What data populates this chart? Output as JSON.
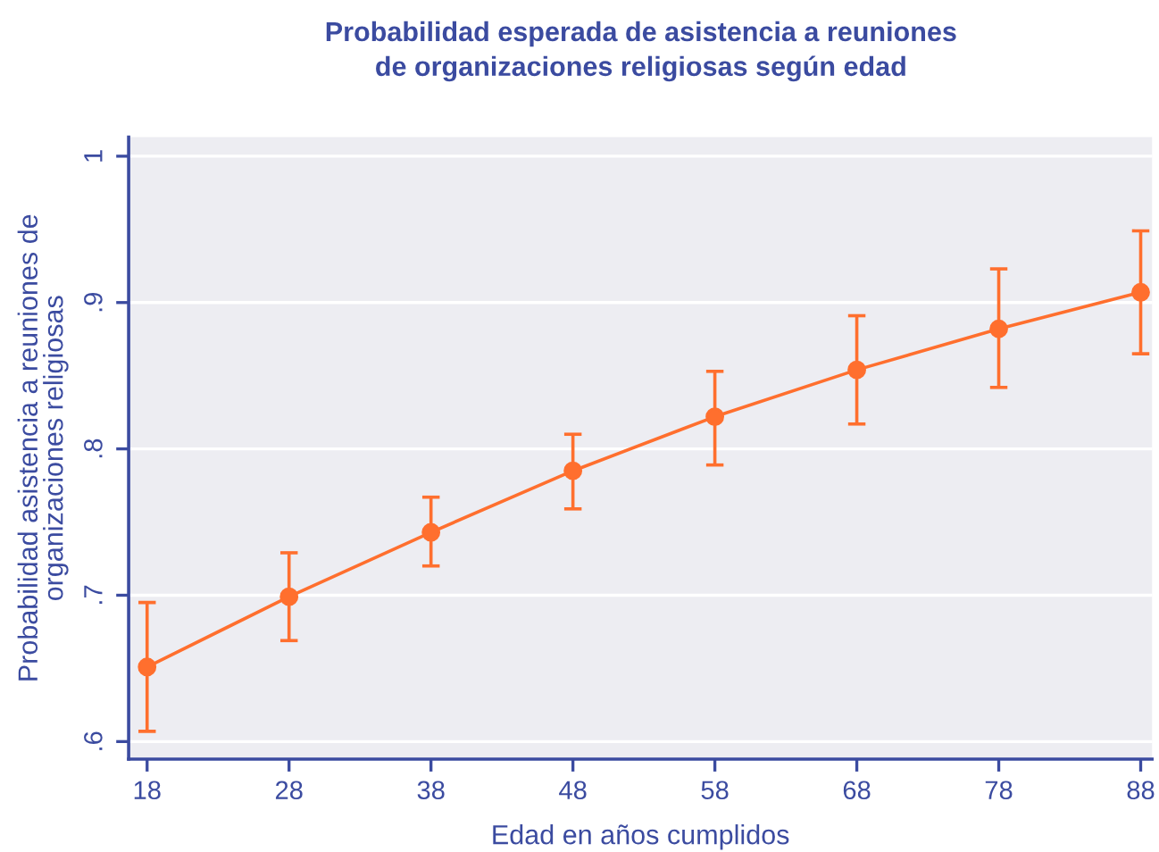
{
  "chart_data": {
    "type": "line",
    "title": "Probabilidad esperada de asistencia a reuniones\nde organizaciones religiosas según edad",
    "xlabel": "Edad en años cumplidos",
    "ylabel": "Probabilidad asistencia a reuniones de\norganizaciones religiosas",
    "x": [
      18,
      28,
      38,
      48,
      58,
      68,
      78,
      88
    ],
    "series": [
      {
        "color": "#ff6f2e",
        "values": [
          0.651,
          0.699,
          0.743,
          0.785,
          0.822,
          0.854,
          0.882,
          0.907
        ],
        "errors": [
          [
            0.607,
            0.695
          ],
          [
            0.669,
            0.729
          ],
          [
            0.72,
            0.767
          ],
          [
            0.759,
            0.81
          ],
          [
            0.789,
            0.853
          ],
          [
            0.817,
            0.891
          ],
          [
            0.842,
            0.923
          ],
          [
            0.865,
            0.949
          ]
        ]
      }
    ],
    "xlim": [
      16.7,
      88.8
    ],
    "ylim": [
      0.588,
      1.013
    ],
    "xticks": [
      18,
      28,
      38,
      48,
      58,
      68,
      78,
      88
    ],
    "yticks": [
      {
        "value": 0.6,
        "label": ".6"
      },
      {
        "value": 0.7,
        "label": ".7"
      },
      {
        "value": 0.8,
        "label": ".8"
      },
      {
        "value": 0.9,
        "label": ".9"
      },
      1
    ],
    "grid": "y",
    "marker": "circle",
    "line_style": "solid"
  }
}
